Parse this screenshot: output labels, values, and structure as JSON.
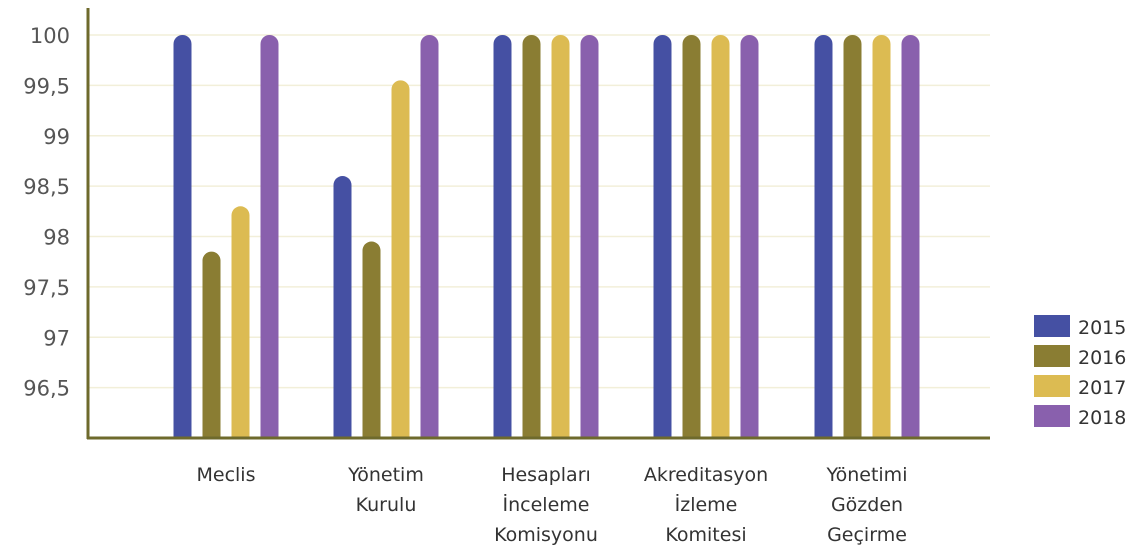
{
  "chart_data": {
    "type": "bar",
    "categories": [
      [
        "Meclis"
      ],
      [
        "Yönetim",
        "Kurulu"
      ],
      [
        "Hesapları",
        "İnceleme",
        "Komisyonu"
      ],
      [
        "Akreditasyon",
        "İzleme",
        "Komitesi"
      ],
      [
        "Yönetimi",
        "Gözden",
        "Geçirme"
      ]
    ],
    "series": [
      {
        "name": "2015",
        "color": "#4550a3",
        "values": [
          100,
          98.6,
          100,
          100,
          100
        ]
      },
      {
        "name": "2016",
        "color": "#8a7d33",
        "values": [
          97.85,
          97.95,
          100,
          100,
          100
        ]
      },
      {
        "name": "2017",
        "color": "#dcbb52",
        "values": [
          98.3,
          99.55,
          100,
          100,
          100
        ]
      },
      {
        "name": "2018",
        "color": "#8960ad",
        "values": [
          100,
          100,
          100,
          100,
          100
        ]
      }
    ],
    "yticks": [
      "100",
      "99,5",
      "99",
      "98,5",
      "98",
      "97,5",
      "97",
      "96,5"
    ],
    "ytick_values": [
      100,
      99.5,
      99,
      98.5,
      98,
      97.5,
      97,
      96.5
    ],
    "ylim": [
      96,
      100
    ],
    "grid": true,
    "legend_position": "right",
    "axis_color": "#6e6a2c",
    "grid_color": "#f2efd9"
  }
}
